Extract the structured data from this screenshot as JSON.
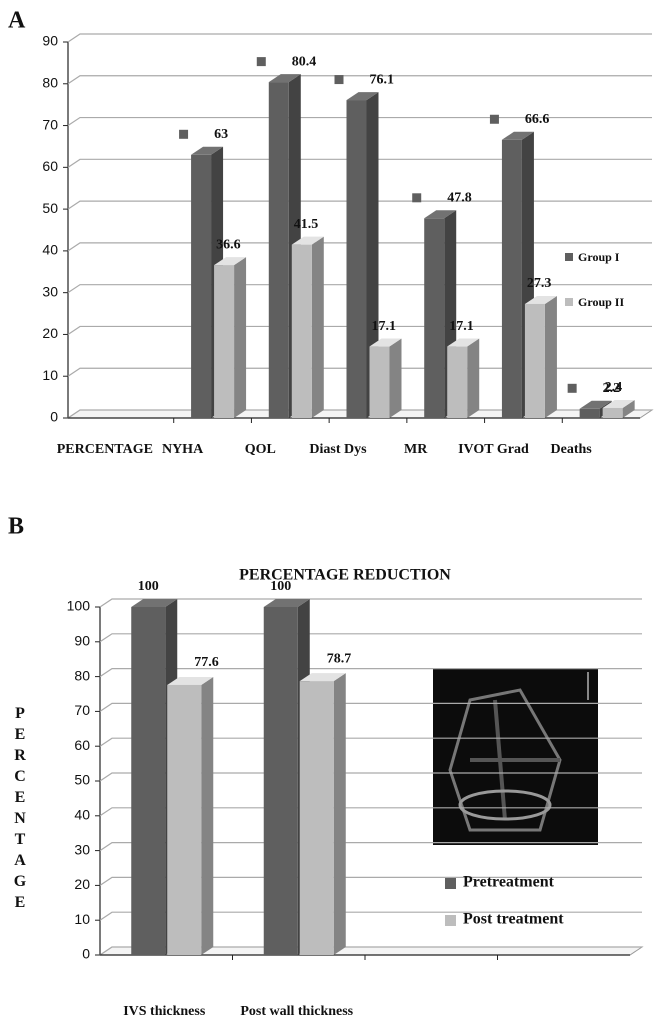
{
  "chart_data": [
    {
      "type": "bar",
      "label": "A",
      "categories": [
        "PERCENTAGE",
        "NYHA",
        "QOL",
        "Diast Dys",
        "MR",
        "IVOT Grad",
        "Deaths"
      ],
      "series": [
        {
          "name": "Group I",
          "color": "#5f5f5f",
          "values": [
            null,
            63,
            80.4,
            76.1,
            47.8,
            66.6,
            2.2
          ]
        },
        {
          "name": "Group II",
          "color": "#bdbdbd",
          "values": [
            null,
            36.6,
            41.5,
            17.1,
            17.1,
            27.3,
            2.4
          ]
        }
      ],
      "ylim": [
        0,
        90
      ],
      "yticks": [
        0,
        10,
        20,
        30,
        40,
        50,
        60,
        70,
        80,
        90
      ],
      "grid": true
    },
    {
      "type": "bar",
      "label": "B",
      "title": "PERCENTAGE REDUCTION",
      "y_label": "PERCENTAGE",
      "categories": [
        "IVS thickness",
        "Post wall thickness",
        null,
        null
      ],
      "series": [
        {
          "name": "Pretreatment",
          "color": "#5f5f5f",
          "values": [
            100,
            100,
            null,
            null
          ]
        },
        {
          "name": "Post treatment",
          "color": "#bdbdbd",
          "values": [
            77.6,
            78.7,
            null,
            null
          ]
        }
      ],
      "ylim": [
        0,
        100
      ],
      "yticks": [
        0,
        10,
        20,
        30,
        40,
        50,
        60,
        70,
        80,
        90,
        100
      ],
      "grid": true
    }
  ]
}
